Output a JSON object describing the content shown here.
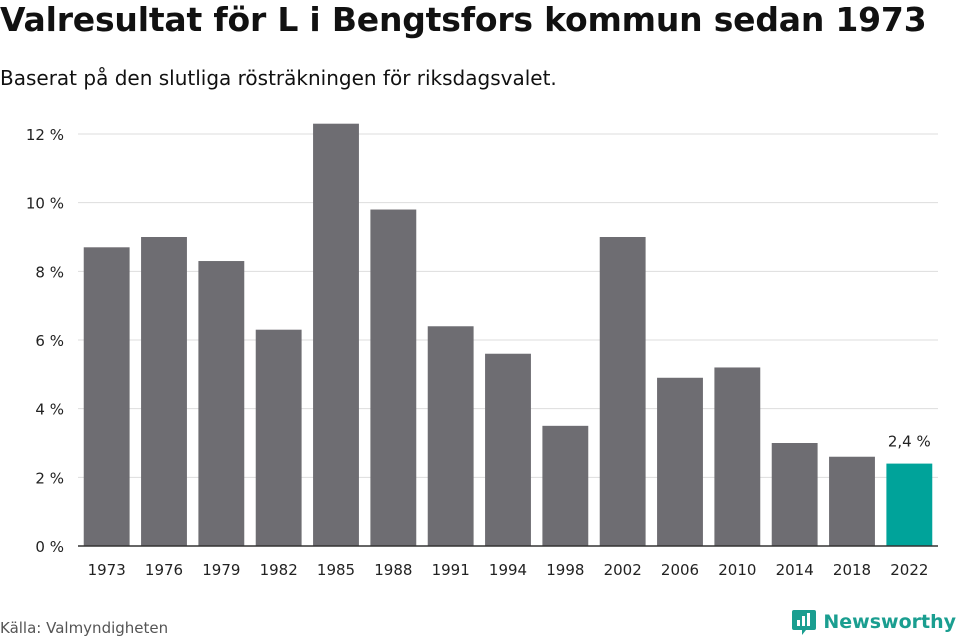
{
  "title": "Valresultat för L i Bengtsfors kommun sedan 1973",
  "subtitle": "Baserat på den slutliga rösträkningen för riksdagsvalet.",
  "source": "Källa: Valmyndigheten",
  "brand": {
    "name": "Newsworthy",
    "icon": "newsworthy-logo-icon",
    "color": "#1a9e90"
  },
  "colors": {
    "bar": "#6e6d72",
    "highlight": "#00a39a",
    "grid": "#dddddd",
    "axis": "#333333"
  },
  "chart_data": {
    "type": "bar",
    "title": "Valresultat för L i Bengtsfors kommun sedan 1973",
    "xlabel": "",
    "ylabel": "",
    "categories": [
      "1973",
      "1976",
      "1979",
      "1982",
      "1985",
      "1988",
      "1991",
      "1994",
      "1998",
      "2002",
      "2006",
      "2010",
      "2014",
      "2018",
      "2022"
    ],
    "values": [
      8.7,
      9.0,
      8.3,
      6.3,
      12.3,
      9.8,
      6.4,
      5.6,
      3.5,
      9.0,
      4.9,
      5.2,
      3.0,
      2.6,
      2.4
    ],
    "highlight_index": 14,
    "highlight_label": "2,4 %",
    "ylim": [
      0,
      12
    ],
    "yticks": [
      0,
      2,
      4,
      6,
      8,
      10,
      12
    ],
    "ytick_labels": [
      "0 %",
      "2 %",
      "4 %",
      "6 %",
      "8 %",
      "10 %",
      "12 %"
    ],
    "grid": true
  }
}
